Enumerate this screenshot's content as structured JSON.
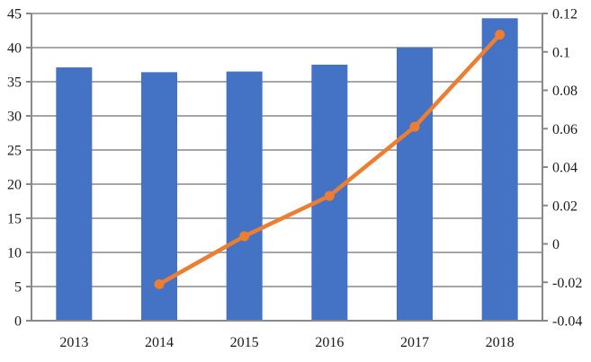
{
  "chart_data": {
    "type": "combo",
    "title": "",
    "legend": "none",
    "grid": "horizontal-major-left-axis",
    "categories": [
      "2013",
      "2014",
      "2015",
      "2016",
      "2017",
      "2018"
    ],
    "series": [
      {
        "name": "bars",
        "type": "bar",
        "axis": "left",
        "color": "#4472C4",
        "values": [
          37.1,
          36.4,
          36.5,
          37.5,
          40.0,
          44.3
        ]
      },
      {
        "name": "line",
        "type": "line",
        "axis": "right",
        "color": "#ED7D31",
        "values": [
          null,
          -0.021,
          0.004,
          0.025,
          0.061,
          0.109
        ]
      }
    ],
    "left_axis": {
      "min": 0,
      "max": 45,
      "step": 5,
      "tick_labels": [
        "0",
        "5",
        "10",
        "15",
        "20",
        "25",
        "30",
        "35",
        "40",
        "45"
      ]
    },
    "right_axis": {
      "min": -0.04,
      "max": 0.12,
      "step": 0.02,
      "tick_labels": [
        "-0.04",
        "-0.02",
        "0",
        "0.02",
        "0.04",
        "0.06",
        "0.08",
        "0.1",
        "0.12"
      ]
    }
  },
  "colors": {
    "bar": "#4472C4",
    "line": "#ED7D31",
    "gridline": "#A6A6A6",
    "axis": "#898989",
    "text": "#1a1a1a",
    "background": "#FFFFFF"
  }
}
